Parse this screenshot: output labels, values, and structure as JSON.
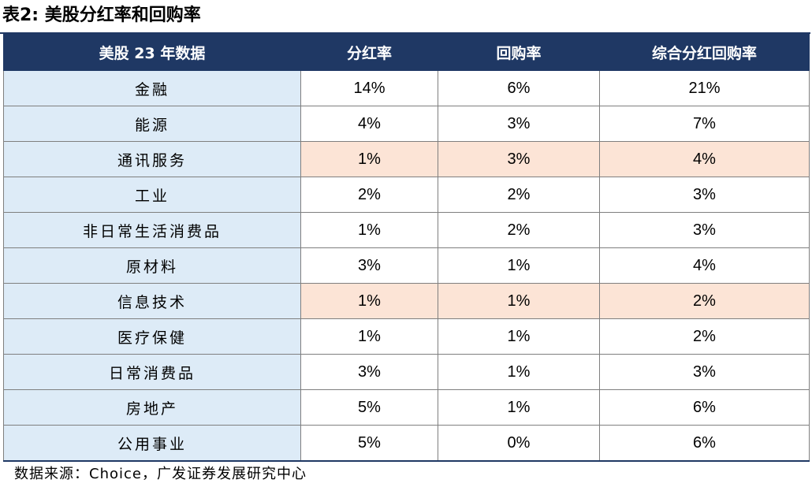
{
  "title": "表2:  美股分红率和回购率",
  "table": {
    "headers": [
      "美股 23 年数据",
      "分红率",
      "回购率",
      "综合分红回购率"
    ],
    "rows": [
      {
        "category": "金融",
        "dividend": "14%",
        "buyback": "6%",
        "combined": "21%"
      },
      {
        "category": "能源",
        "dividend": "4%",
        "buyback": "3%",
        "combined": "7%"
      },
      {
        "category": "通讯服务",
        "dividend": "1%",
        "buyback": "3%",
        "combined": "4%"
      },
      {
        "category": "工业",
        "dividend": "2%",
        "buyback": "2%",
        "combined": "3%"
      },
      {
        "category": "非日常生活消费品",
        "dividend": "1%",
        "buyback": "2%",
        "combined": "3%"
      },
      {
        "category": "原材料",
        "dividend": "3%",
        "buyback": "1%",
        "combined": "4%"
      },
      {
        "category": "信息技术",
        "dividend": "1%",
        "buyback": "1%",
        "combined": "2%"
      },
      {
        "category": "医疗保健",
        "dividend": "1%",
        "buyback": "1%",
        "combined": "2%"
      },
      {
        "category": "日常消费品",
        "dividend": "3%",
        "buyback": "1%",
        "combined": "3%"
      },
      {
        "category": "房地产",
        "dividend": "5%",
        "buyback": "1%",
        "combined": "6%"
      },
      {
        "category": "公用事业",
        "dividend": "5%",
        "buyback": "0%",
        "combined": "6%"
      }
    ],
    "highlighted_rows": [
      "通讯服务",
      "信息技术"
    ]
  },
  "colors": {
    "header_bg": "#1f3864",
    "header_text": "#ffffff",
    "category_bg": "#ddebf7",
    "highlight_bg": "#fce4d6",
    "border": "#7f7f7f"
  },
  "source": "数据来源：Choice，广发证券发展研究中心"
}
